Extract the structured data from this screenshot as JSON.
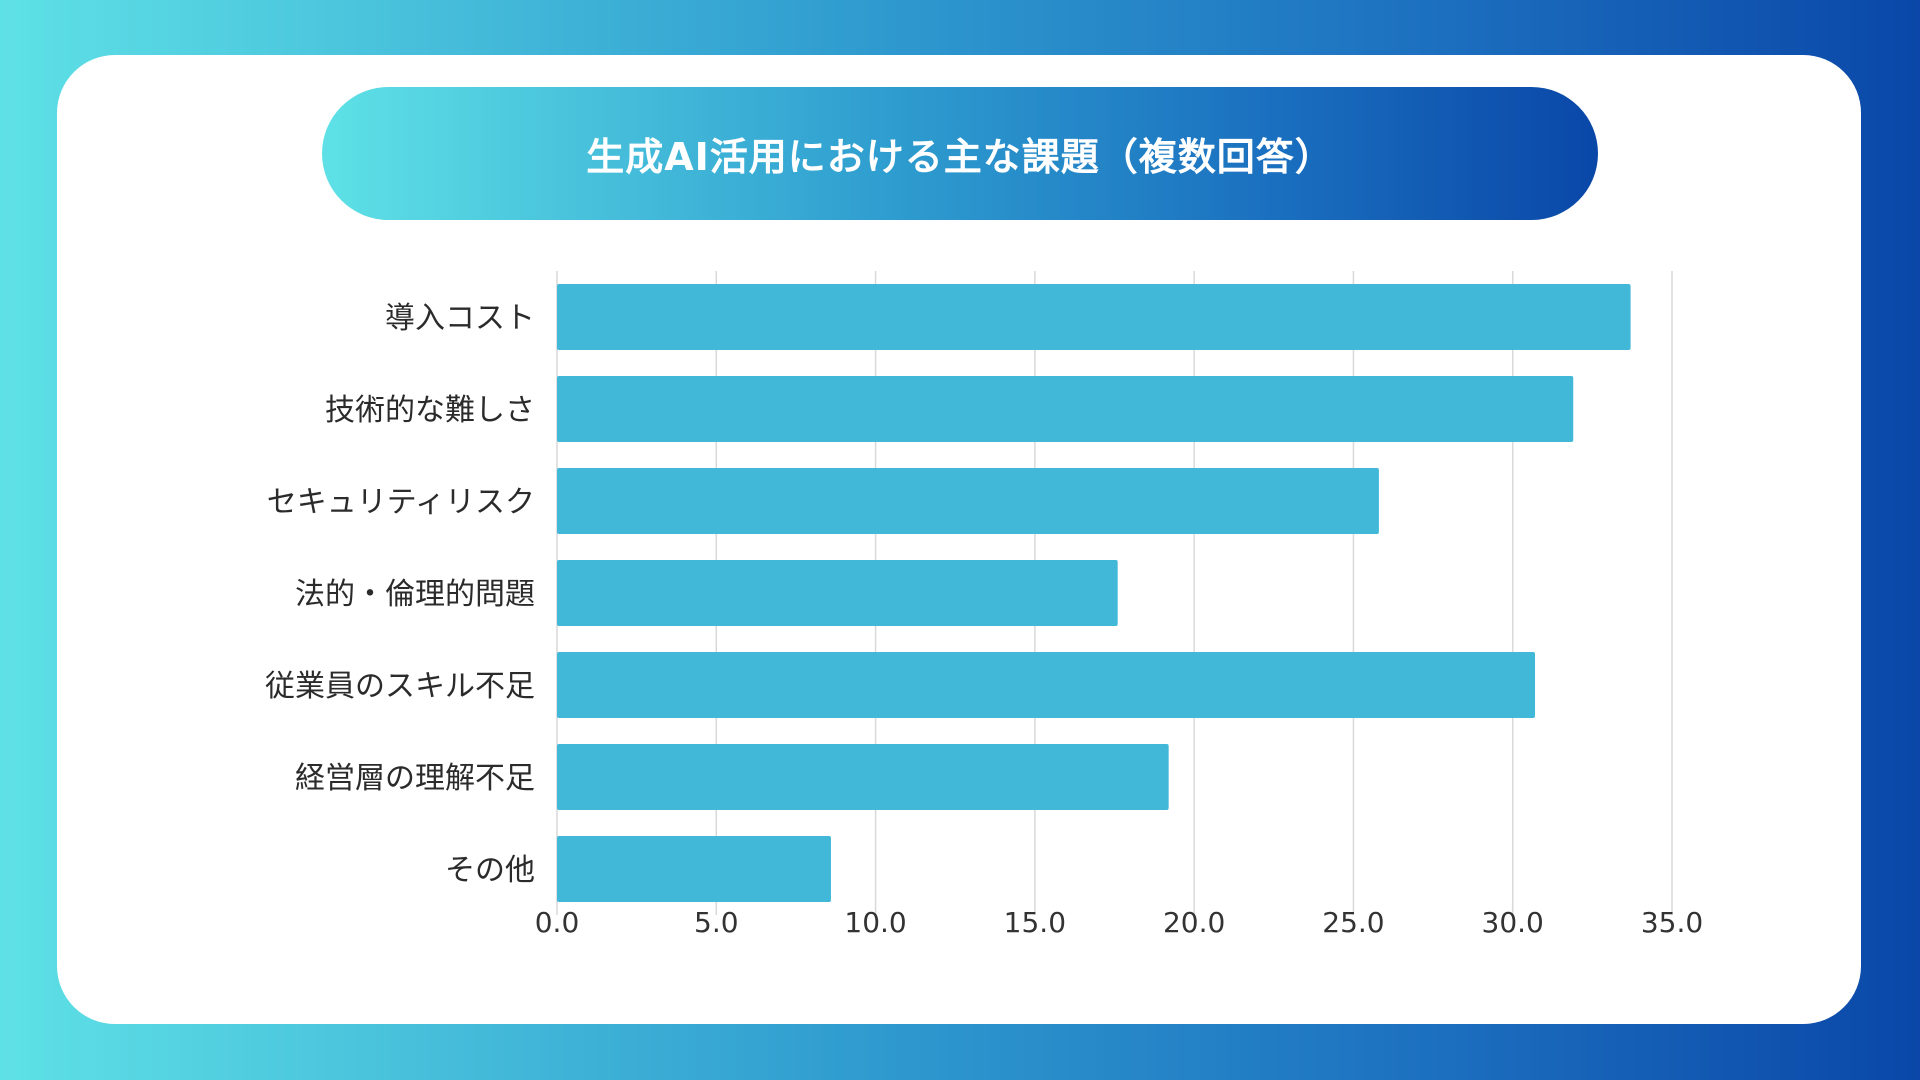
{
  "colors": {
    "bar": "#42b8d8",
    "grid": "#d9d9d9",
    "background_start": "#5ee1e6",
    "background_end": "#0a47a8",
    "card": "#ffffff",
    "title_text": "#ffffff"
  },
  "chart_data": {
    "type": "bar",
    "orientation": "horizontal",
    "title": "生成AI活用における主な課題（複数回答）",
    "xlabel": "",
    "ylabel": "",
    "categories": [
      "導入コスト",
      "技術的な難しさ",
      "セキュリティリスク",
      "法的・倫理的問題",
      "従業員のスキル不足",
      "経営層の理解不足",
      "その他"
    ],
    "values": [
      33.7,
      31.9,
      25.8,
      17.6,
      30.7,
      19.2,
      8.6
    ],
    "xlim": [
      0,
      35
    ],
    "ticks": [
      0,
      5,
      10,
      15,
      20,
      25,
      30,
      35
    ],
    "tick_labels": [
      "0.0",
      "5.0",
      "10.0",
      "15.0",
      "20.0",
      "25.0",
      "30.0",
      "35.0"
    ],
    "grid": true,
    "legend": "none"
  }
}
